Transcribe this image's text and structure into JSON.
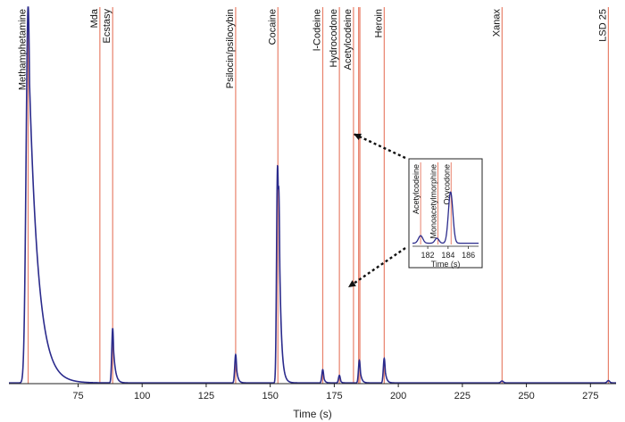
{
  "chart_data": {
    "type": "line",
    "title": "",
    "xlabel": "Time (s)",
    "ylabel": "",
    "xlim": [
      48,
      285
    ],
    "xticks": [
      75,
      100,
      125,
      150,
      175,
      200,
      225,
      250,
      275
    ],
    "series_color": "#2b2b8c",
    "marker_color": "#e8816b",
    "compounds": [
      {
        "name": "Methamphetamine",
        "time": 55.5
      },
      {
        "name": "Mda",
        "time": 83.5
      },
      {
        "name": "Ecstasy",
        "time": 88.5
      },
      {
        "name": "Psilocin/psilocybin",
        "time": 136.5
      },
      {
        "name": "Cocaine",
        "time": 153.0
      },
      {
        "name": "l-Codeine",
        "time": 170.5
      },
      {
        "name": "Hydrocodone",
        "time": 177.0
      },
      {
        "name": "Acetylcodeine",
        "time": 182.5
      },
      {
        "name": "",
        "time": 184.5
      },
      {
        "name": "",
        "time": 185.0
      },
      {
        "name": "Heroin",
        "time": 194.5
      },
      {
        "name": "Xanax",
        "time": 240.5
      },
      {
        "name": "LSD 25",
        "time": 282.0
      }
    ],
    "peaks": [
      {
        "time": 55.5,
        "height": 1.0,
        "width": 0.8,
        "tail": 3.5
      },
      {
        "time": 88.5,
        "height": 0.145,
        "width": 0.35,
        "tail": 0.8
      },
      {
        "time": 136.5,
        "height": 0.075,
        "width": 0.35,
        "tail": 0.6
      },
      {
        "time": 152.8,
        "height": 0.535,
        "width": 0.35,
        "tail": 0.9
      },
      {
        "time": 153.4,
        "height": 0.25,
        "width": 0.3,
        "tail": 0.6
      },
      {
        "time": 170.5,
        "height": 0.035,
        "width": 0.35,
        "tail": 0.5
      },
      {
        "time": 177.0,
        "height": 0.02,
        "width": 0.35,
        "tail": 0.4
      },
      {
        "time": 184.8,
        "height": 0.06,
        "width": 0.35,
        "tail": 0.6
      },
      {
        "time": 194.5,
        "height": 0.065,
        "width": 0.35,
        "tail": 0.6
      },
      {
        "time": 240.5,
        "height": 0.005,
        "width": 0.5,
        "tail": 0.4
      },
      {
        "time": 282.0,
        "height": 0.006,
        "width": 0.5,
        "tail": 0.4
      }
    ],
    "inset": {
      "xlabel": "Time (s)",
      "xlim": [
        180.5,
        187
      ],
      "xticks": [
        182,
        184,
        186
      ],
      "markers": [
        {
          "name": "Acetylcodeine",
          "time": 181.3
        },
        {
          "name": "Monoacetylmorphine",
          "time": 183.0
        },
        {
          "name": "Oxycodone",
          "time": 184.3
        }
      ],
      "peaks": [
        {
          "time": 181.3,
          "height": 0.12,
          "width": 0.22
        },
        {
          "time": 182.9,
          "height": 0.08,
          "width": 0.2
        },
        {
          "time": 184.25,
          "height": 0.82,
          "width": 0.22
        }
      ]
    }
  }
}
